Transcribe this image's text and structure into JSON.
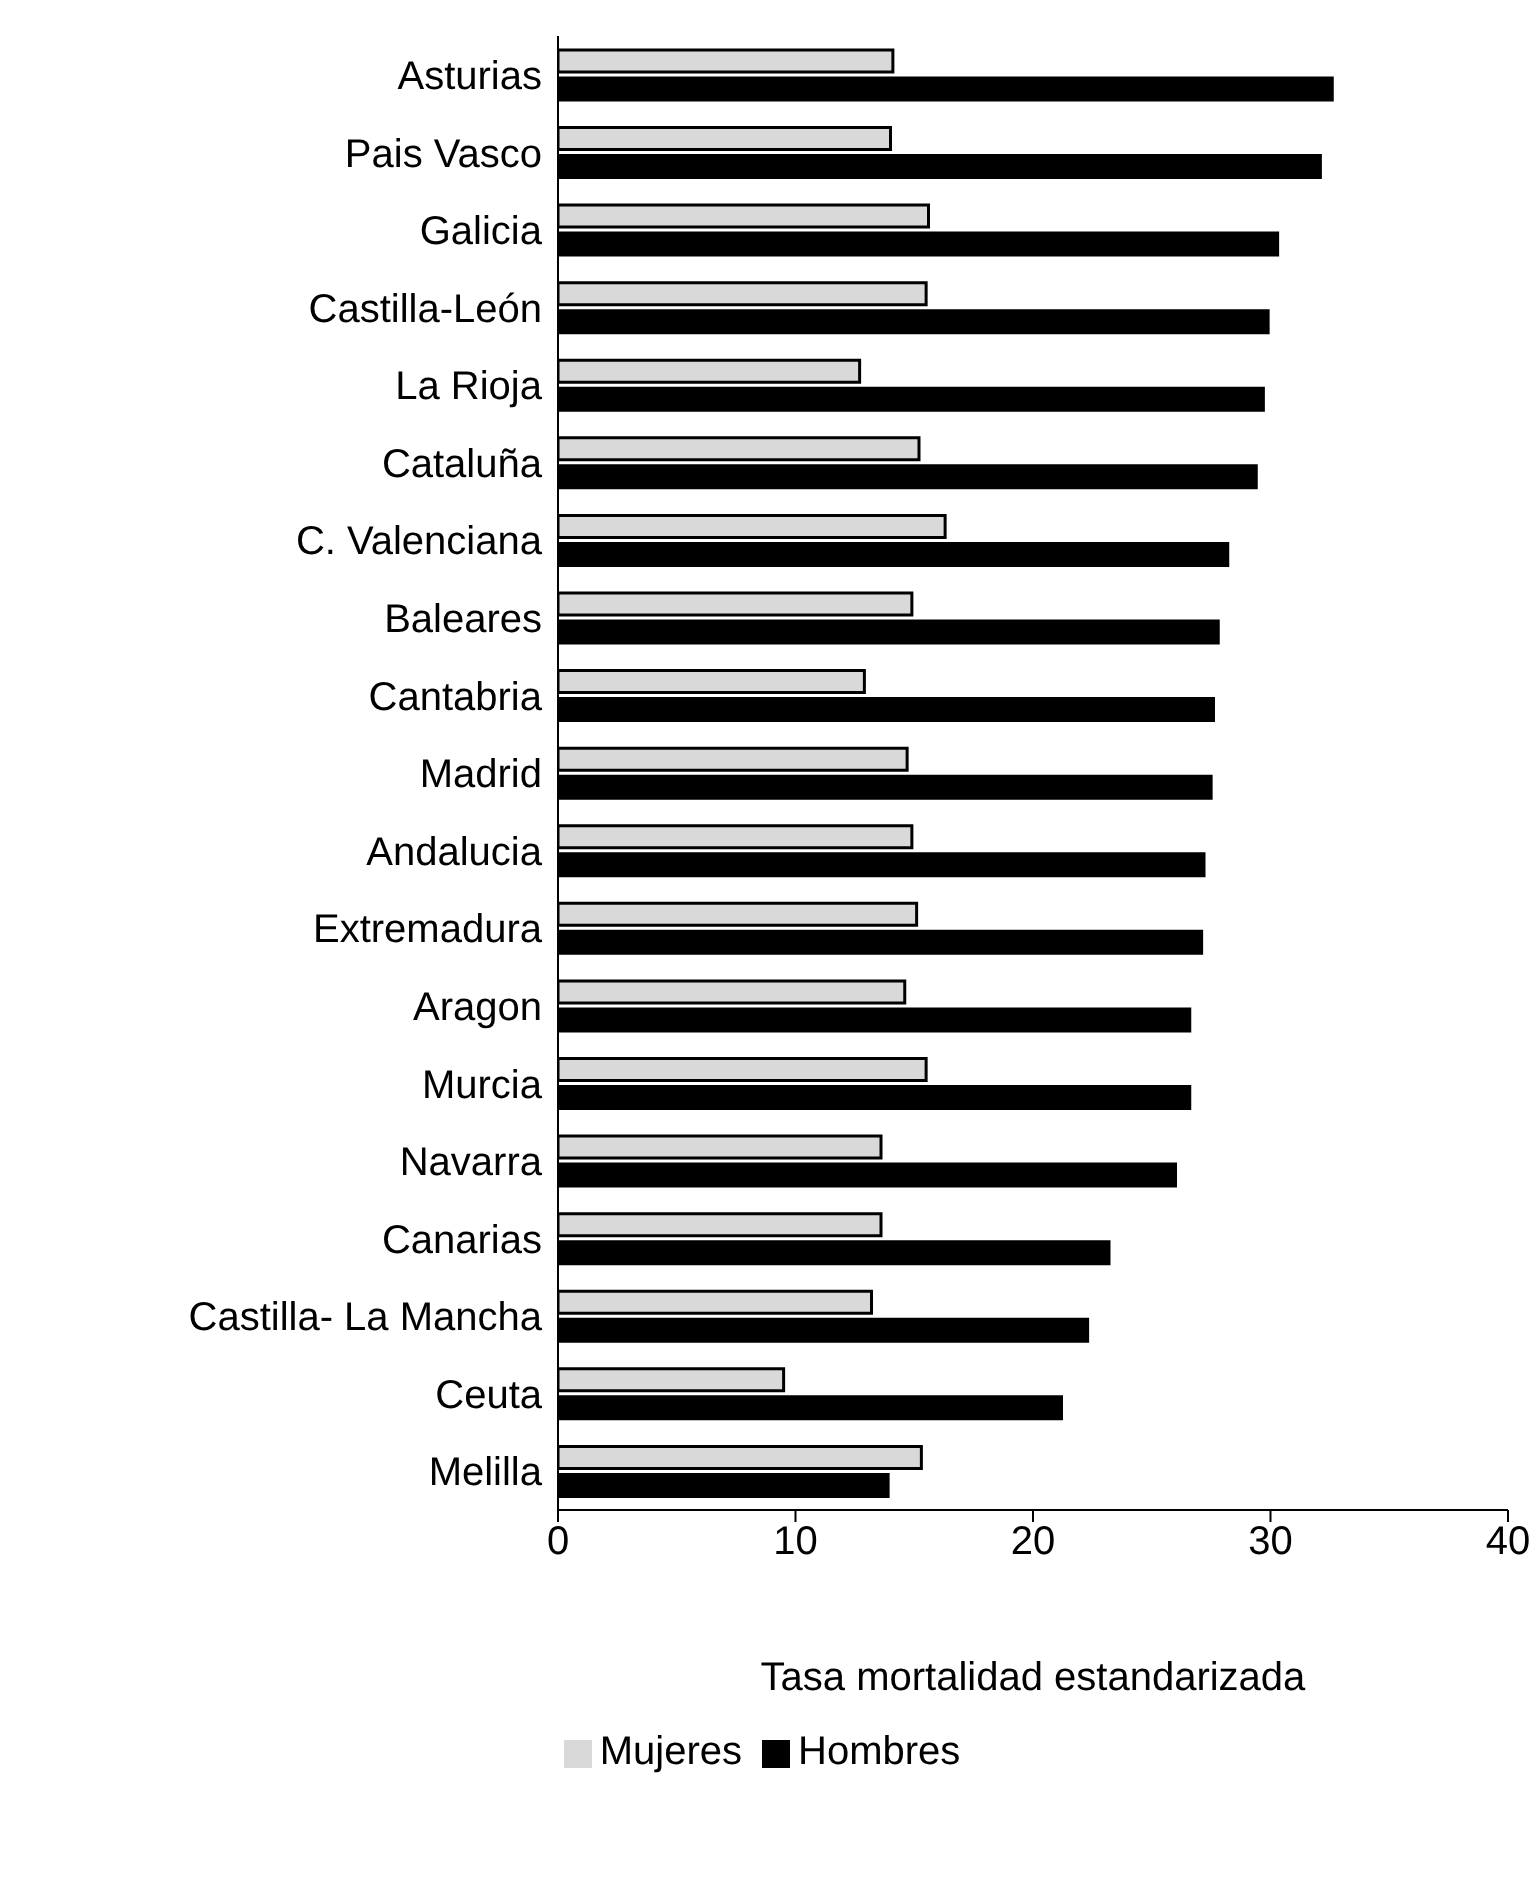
{
  "chart_data": {
    "type": "bar",
    "orientation": "horizontal",
    "xlabel": "Tasa mortalidad estandarizada",
    "categories": [
      "Asturias",
      "Pais Vasco",
      "Galicia",
      "Castilla-León",
      "La Rioja",
      "Cataluña",
      "C. Valenciana",
      "Baleares",
      "Cantabria",
      "Madrid",
      "Andalucia",
      "Extremadura",
      "Aragon",
      "Murcia",
      "Navarra",
      "Canarias",
      "Castilla- La Mancha",
      "Ceuta",
      "Melilla"
    ],
    "series": [
      {
        "name": "Mujeres",
        "color": "#d9d9d9",
        "values": [
          14.1,
          14.0,
          15.6,
          15.5,
          12.7,
          15.2,
          16.3,
          14.9,
          12.9,
          14.7,
          14.9,
          15.1,
          14.6,
          15.5,
          13.6,
          13.6,
          13.2,
          9.5,
          15.3
        ]
      },
      {
        "name": "Hombres",
        "color": "#000000",
        "values": [
          32.6,
          32.1,
          30.3,
          29.9,
          29.7,
          29.4,
          28.2,
          27.8,
          27.6,
          27.5,
          27.2,
          27.1,
          26.6,
          26.6,
          26.0,
          23.2,
          22.3,
          21.2,
          13.9
        ]
      }
    ],
    "xlim": [
      0,
      40
    ],
    "xticks": [
      0,
      10,
      20,
      30,
      40
    ],
    "grid": false,
    "legend": "bottom"
  }
}
